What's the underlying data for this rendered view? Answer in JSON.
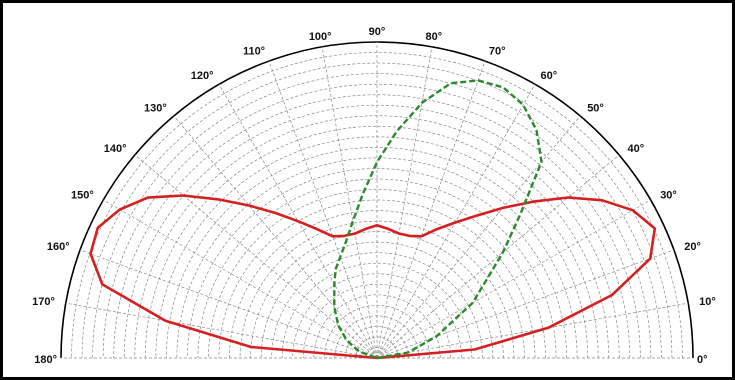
{
  "chart_data": {
    "type": "polar",
    "angle_ticks": [
      "0°",
      "10°",
      "20°",
      "30°",
      "40°",
      "50°",
      "60°",
      "70°",
      "80°",
      "90°",
      "100°",
      "110°",
      "120°",
      "130°",
      "140°",
      "150°",
      "160°",
      "170°",
      "180°"
    ],
    "grid": true,
    "series": [
      {
        "color": "#d42020",
        "style": "solid",
        "theta_deg": [
          0,
          5,
          10,
          15,
          20,
          25,
          30,
          35,
          40,
          45,
          50,
          55,
          60,
          65,
          70,
          75,
          80,
          85,
          90,
          95,
          100,
          105,
          110,
          115,
          120,
          125,
          130,
          135,
          140,
          145,
          150,
          155,
          160,
          165,
          170,
          175,
          180
        ],
        "r": [
          0,
          0.31,
          0.55,
          0.77,
          0.92,
          0.97,
          0.935,
          0.87,
          0.79,
          0.7,
          0.62,
          0.55,
          0.495,
          0.45,
          0.41,
          0.4,
          0.4,
          0.41,
          0.42,
          0.41,
          0.4,
          0.4,
          0.41,
          0.45,
          0.5,
          0.56,
          0.63,
          0.71,
          0.8,
          0.885,
          0.94,
          0.975,
          0.965,
          0.9,
          0.68,
          0.4,
          0
        ]
      },
      {
        "color": "#2a8a2a",
        "style": "dashed",
        "theta_deg": [
          0,
          10,
          20,
          30,
          40,
          45,
          50,
          55,
          60,
          65,
          70,
          75,
          80,
          85,
          90,
          95,
          100,
          105,
          110,
          115,
          120,
          130,
          140,
          150,
          160,
          180
        ],
        "r": [
          0,
          0.1,
          0.2,
          0.35,
          0.52,
          0.64,
          0.81,
          0.88,
          0.925,
          0.945,
          0.935,
          0.9,
          0.82,
          0.72,
          0.62,
          0.52,
          0.44,
          0.38,
          0.34,
          0.31,
          0.27,
          0.21,
          0.16,
          0.11,
          0.06,
          0
        ]
      }
    ]
  }
}
